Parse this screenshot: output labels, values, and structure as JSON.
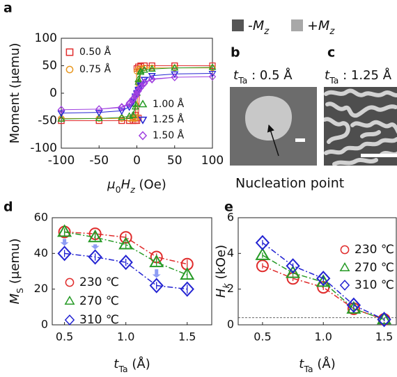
{
  "chart_data": [
    {
      "type": "line",
      "ylabel": "Moment (μemu)",
      "xlabel": [
        {
          "text": "μ",
          "italic": true
        },
        {
          "text": "0",
          "sub": true
        },
        {
          "text": "H",
          "italic": true
        },
        {
          "text": "z",
          "sub": true,
          "italic": true
        },
        {
          "text": " (Oe)"
        }
      ],
      "xlim": [
        -100,
        100
      ],
      "xticks": [
        -100,
        -50,
        0,
        50,
        100
      ],
      "ylim": [
        -100,
        100
      ],
      "yticks": [
        -100,
        -50,
        0,
        50,
        100
      ],
      "line_style": "solid",
      "x": [
        -100,
        -50,
        -20,
        -10,
        -5,
        -2,
        0,
        2,
        5,
        10,
        20,
        50,
        100,
        50,
        20,
        10,
        5,
        2,
        0,
        -2,
        -5,
        -10,
        -20,
        -50,
        -100
      ],
      "series": [
        {
          "name": "0.50 Å",
          "color": "#e02c2c",
          "marker": "square",
          "values": [
            -50,
            -50,
            -50,
            -50,
            -50,
            -50,
            -50,
            -45,
            49,
            50,
            50,
            50,
            50,
            50,
            50,
            50,
            50,
            48,
            45,
            -40,
            -50,
            -50,
            -50,
            -50,
            -50
          ]
        },
        {
          "name": "0.75 Å",
          "color": "#e8961e",
          "marker": "circle",
          "values": [
            -46,
            -46,
            -46,
            -46,
            -46,
            -46,
            -44,
            20,
            45,
            46,
            46,
            46,
            46,
            46,
            46,
            46,
            45,
            44,
            40,
            -20,
            -45,
            -46,
            -46,
            -46,
            -46
          ]
        },
        {
          "name": "1.00 Å",
          "color": "#259a25",
          "marker": "triangle",
          "values": [
            -47,
            -46,
            -44,
            -42,
            -40,
            -20,
            0,
            25,
            40,
            42,
            44,
            46,
            47,
            46,
            44,
            42,
            38,
            20,
            0,
            -25,
            -40,
            -42,
            -44,
            -46,
            -47
          ]
        },
        {
          "name": "1.25 Å",
          "color": "#2323d2",
          "marker": "triangle-down",
          "values": [
            -36,
            -35,
            -32,
            -25,
            -15,
            -7,
            -1,
            5,
            14,
            25,
            32,
            35,
            36,
            35,
            32,
            25,
            15,
            7,
            1,
            -5,
            -14,
            -25,
            -32,
            -35,
            -36
          ]
        },
        {
          "name": "1.50 Å",
          "color": "#a040e0",
          "marker": "diamond",
          "values": [
            -30,
            -29,
            -26,
            -20,
            -12,
            -6,
            -2,
            4,
            10,
            18,
            25,
            29,
            30,
            29,
            26,
            20,
            12,
            6,
            2,
            -4,
            -10,
            -18,
            -25,
            -29,
            -30
          ]
        }
      ]
    },
    {
      "type": "line",
      "ylabel": [
        {
          "text": "M",
          "italic": true
        },
        {
          "text": "S",
          "sub": true
        },
        {
          "text": " (μemu)"
        }
      ],
      "xlabel": [
        {
          "text": "t",
          "italic": true
        },
        {
          "text": "Ta",
          "sub": true
        },
        {
          "text": " (Å)"
        }
      ],
      "xlim": [
        0.4,
        1.7
      ],
      "xticks": [
        0.5,
        {
          "value": 1,
          "label": "1.0"
        },
        1.5
      ],
      "ylim": [
        0,
        60
      ],
      "yticks": [
        0,
        20,
        40,
        60
      ],
      "line_style": "dashdot",
      "x": [
        0.5,
        0.75,
        1.0,
        1.25,
        1.5
      ],
      "series": [
        {
          "name": "230 ℃",
          "color": "#e02c2c",
          "marker": "circle",
          "values": [
            52,
            51,
            49,
            38,
            34
          ],
          "errors": [
            2,
            2,
            2,
            2,
            2.5
          ]
        },
        {
          "name": "270 ℃",
          "color": "#259a25",
          "marker": "triangle",
          "values": [
            52,
            49,
            45,
            35,
            28
          ],
          "errors": [
            2,
            2,
            2,
            2,
            2.5
          ]
        },
        {
          "name": "310 ℃",
          "color": "#2323d2",
          "marker": "diamond",
          "values": [
            40,
            38,
            35,
            22,
            20
          ],
          "errors": [
            2,
            2,
            2,
            2,
            2.5
          ]
        }
      ]
    },
    {
      "type": "line",
      "ylabel": [
        {
          "text": "H",
          "italic": true
        },
        {
          "text": "k",
          "sub": true,
          "italic": true
        },
        {
          "text": " (kOe)"
        }
      ],
      "xlabel": [
        {
          "text": "t",
          "italic": true
        },
        {
          "text": "Ta",
          "sub": true
        },
        {
          "text": " (Å)"
        }
      ],
      "xlim": [
        0.3,
        1.6
      ],
      "xticks": [
        0.5,
        {
          "value": 1,
          "label": "1.0"
        },
        1.5
      ],
      "ylim": [
        0,
        6
      ],
      "yticks": [
        0,
        2,
        4,
        6
      ],
      "line_style": "dashdot",
      "hline": 0.4,
      "x": [
        0.5,
        0.75,
        1.0,
        1.25,
        1.5
      ],
      "series": [
        {
          "name": "230 ℃",
          "color": "#e02c2c",
          "marker": "circle",
          "values": [
            3.3,
            2.6,
            2.1,
            0.9,
            0.3
          ],
          "errors": [
            0.15,
            0.15,
            0.15,
            0.15,
            0.1
          ]
        },
        {
          "name": "270 ℃",
          "color": "#259a25",
          "marker": "triangle",
          "values": [
            3.9,
            2.9,
            2.4,
            0.9,
            0.3
          ],
          "errors": [
            0.15,
            0.15,
            0.15,
            0.15,
            0.1
          ]
        },
        {
          "name": "310 ℃",
          "color": "#2323d2",
          "marker": "diamond",
          "values": [
            4.6,
            3.3,
            2.6,
            1.1,
            0.3
          ],
          "errors": [
            0.15,
            0.15,
            0.15,
            0.15,
            0.1
          ]
        }
      ]
    }
  ],
  "figure": {
    "panel_labels": [
      "a",
      "b",
      "c",
      "d",
      "e"
    ],
    "domain_legend": [
      [
        {
          "text": "-"
        },
        {
          "text": "M",
          "italic": true
        },
        {
          "text": "z",
          "sub": true,
          "italic": true
        }
      ],
      [
        {
          "text": "+"
        },
        {
          "text": "M",
          "italic": true
        },
        {
          "text": "z",
          "sub": true,
          "italic": true
        }
      ]
    ],
    "image_titles": [
      [
        {
          "text": "t",
          "italic": true
        },
        {
          "text": "Ta",
          "sub": true
        },
        {
          "text": " : 0.5 Å"
        }
      ],
      [
        {
          "text": "t",
          "italic": true
        },
        {
          "text": "Ta",
          "sub": true
        },
        {
          "text": " : 1.25 Å"
        }
      ]
    ],
    "annotation": "Nucleation point"
  }
}
